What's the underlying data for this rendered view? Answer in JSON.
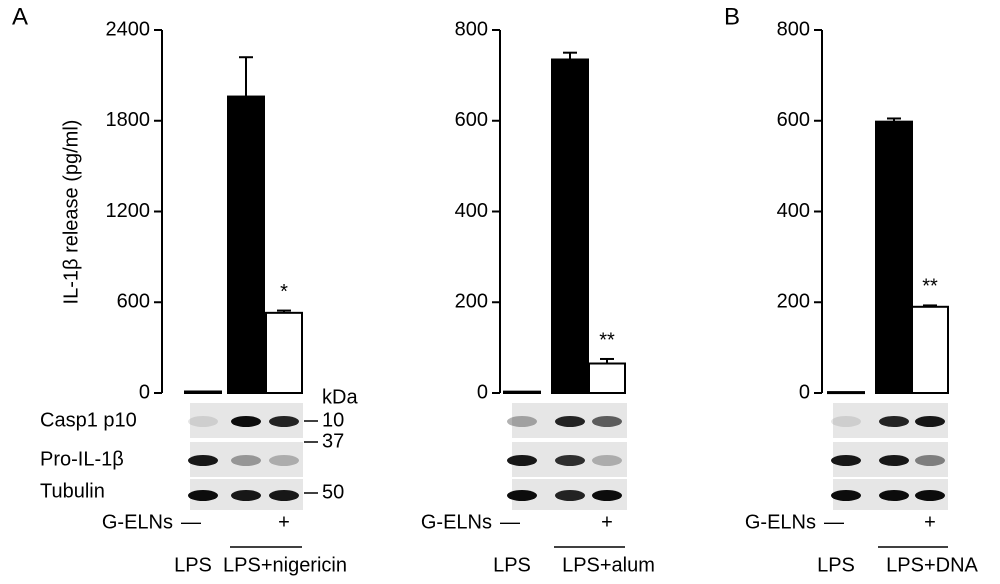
{
  "chart_data": [
    {
      "type": "bar",
      "panel": "A",
      "ylabel": "IL-1β release (pg/ml)",
      "ylim": [
        0,
        2400
      ],
      "yticks": [
        0,
        600,
        1200,
        1800,
        2400
      ],
      "categories_label": "G-ELNs",
      "categories": [
        "—",
        null,
        "+"
      ],
      "values": [
        10,
        1960,
        530
      ],
      "errors": [
        0,
        260,
        15
      ],
      "colors": [
        "#000000",
        "#000000",
        "#ffffff"
      ],
      "annotations": [
        null,
        null,
        "*"
      ],
      "groups": [
        "LPS",
        "LPS+nigericin"
      ],
      "blot": {
        "rows": [
          "Casp1 p10",
          "Pro-IL-1β",
          "Tubulin"
        ],
        "unit": "kDa",
        "markers": [
          10,
          37,
          50
        ]
      }
    },
    {
      "type": "bar",
      "ylim": [
        0,
        800
      ],
      "yticks": [
        0,
        200,
        400,
        600,
        800
      ],
      "categories_label": "G-ELNs",
      "categories": [
        "—",
        null,
        "+"
      ],
      "values": [
        3,
        735,
        65
      ],
      "errors": [
        0,
        15,
        10
      ],
      "colors": [
        "#000000",
        "#000000",
        "#ffffff"
      ],
      "annotations": [
        null,
        null,
        "**"
      ],
      "groups": [
        "LPS",
        "LPS+alum"
      ]
    },
    {
      "type": "bar",
      "panel": "B",
      "ylim": [
        0,
        800
      ],
      "yticks": [
        0,
        200,
        400,
        600,
        800
      ],
      "categories_label": "G-ELNs",
      "categories": [
        "—",
        null,
        "+"
      ],
      "values": [
        2,
        598,
        190
      ],
      "errors": [
        0,
        7,
        3
      ],
      "colors": [
        "#000000",
        "#000000",
        "#ffffff"
      ],
      "annotations": [
        null,
        null,
        "**"
      ],
      "groups": [
        "LPS",
        "LPS+DNA"
      ]
    }
  ]
}
